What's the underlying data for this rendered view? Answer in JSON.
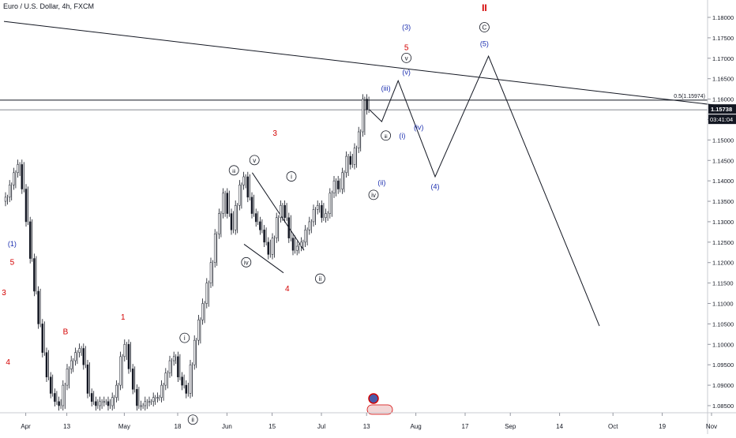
{
  "header": {
    "symbol": "Euro / U.S. Dollar, 4h, FXCM"
  },
  "colors": {
    "red": "#d40000",
    "blue": "#1c2fb0",
    "black": "#131722",
    "grid_text": "#131722",
    "price_badge_bg": "#131722",
    "price_badge_fg": "#ffffff"
  },
  "chart_data": {
    "type": "line",
    "title": "Euro / U.S. Dollar, 4h, FXCM",
    "xlabel": "",
    "ylabel": "",
    "ylim": [
      1.0825,
      1.1825
    ],
    "grid": false,
    "x_ticks": [
      "Apr",
      "13",
      "May",
      "18",
      "Jun",
      "15",
      "Jul",
      "13",
      "Aug",
      "17",
      "Sep",
      "14",
      "Oct",
      "19",
      "Nov"
    ],
    "y_ticks": [
      "1.18000",
      "1.17500",
      "1.17000",
      "1.16500",
      "1.16000",
      "1.15500",
      "1.15000",
      "1.14500",
      "1.14000",
      "1.13500",
      "1.13000",
      "1.12500",
      "1.12000",
      "1.11500",
      "1.11000",
      "1.10500",
      "1.10000",
      "1.09500",
      "1.09000",
      "1.08500"
    ],
    "current_price": "1.15738",
    "countdown": "03:41:04",
    "fib_label": "0.5(1.15974)",
    "price_path": [
      [
        0,
        1.135
      ],
      [
        1,
        1.136
      ],
      [
        2,
        1.139
      ],
      [
        3,
        1.142
      ],
      [
        4,
        1.144
      ],
      [
        5,
        1.138
      ],
      [
        6,
        1.13
      ],
      [
        7,
        1.121
      ],
      [
        8,
        1.113
      ],
      [
        9,
        1.105
      ],
      [
        10,
        1.098
      ],
      [
        11,
        1.092
      ],
      [
        12,
        1.088
      ],
      [
        13,
        1.086
      ],
      [
        14,
        1.085
      ],
      [
        15,
        1.09
      ],
      [
        16,
        1.094
      ],
      [
        17,
        1.096
      ],
      [
        18,
        1.098
      ],
      [
        19,
        1.099
      ],
      [
        20,
        1.095
      ],
      [
        21,
        1.088
      ],
      [
        22,
        1.086
      ],
      [
        23,
        1.085
      ],
      [
        24,
        1.086
      ],
      [
        25,
        1.086
      ],
      [
        26,
        1.085
      ],
      [
        27,
        1.087
      ],
      [
        28,
        1.09
      ],
      [
        29,
        1.097
      ],
      [
        30,
        1.1
      ],
      [
        31,
        1.094
      ],
      [
        32,
        1.089
      ],
      [
        33,
        1.085
      ],
      [
        34,
        1.085
      ],
      [
        35,
        1.086
      ],
      [
        36,
        1.086
      ],
      [
        37,
        1.087
      ],
      [
        38,
        1.087
      ],
      [
        39,
        1.09
      ],
      [
        40,
        1.093
      ],
      [
        41,
        1.096
      ],
      [
        42,
        1.097
      ],
      [
        43,
        1.092
      ],
      [
        44,
        1.09
      ],
      [
        45,
        1.088
      ],
      [
        46,
        1.095
      ],
      [
        47,
        1.101
      ],
      [
        48,
        1.106
      ],
      [
        49,
        1.11
      ],
      [
        50,
        1.115
      ],
      [
        51,
        1.12
      ],
      [
        52,
        1.127
      ],
      [
        53,
        1.132
      ],
      [
        54,
        1.137
      ],
      [
        55,
        1.132
      ],
      [
        56,
        1.128
      ],
      [
        57,
        1.134
      ],
      [
        58,
        1.139
      ],
      [
        59,
        1.141
      ],
      [
        60,
        1.136
      ],
      [
        61,
        1.132
      ],
      [
        62,
        1.13
      ],
      [
        63,
        1.128
      ],
      [
        64,
        1.125
      ],
      [
        65,
        1.122
      ],
      [
        66,
        1.126
      ],
      [
        67,
        1.131
      ],
      [
        68,
        1.134
      ],
      [
        69,
        1.131
      ],
      [
        70,
        1.126
      ],
      [
        71,
        1.123
      ],
      [
        72,
        1.124
      ],
      [
        73,
        1.125
      ],
      [
        74,
        1.128
      ],
      [
        75,
        1.13
      ],
      [
        76,
        1.133
      ],
      [
        77,
        1.134
      ],
      [
        78,
        1.131
      ],
      [
        79,
        1.132
      ],
      [
        80,
        1.137
      ],
      [
        81,
        1.14
      ],
      [
        82,
        1.138
      ],
      [
        83,
        1.142
      ],
      [
        84,
        1.146
      ],
      [
        85,
        1.144
      ],
      [
        86,
        1.148
      ],
      [
        87,
        1.152
      ],
      [
        88,
        1.16
      ],
      [
        89,
        1.1574
      ]
    ],
    "projection_path": [
      [
        89,
        1.1574
      ],
      [
        92,
        1.1545
      ],
      [
        96,
        1.1645
      ],
      [
        105,
        1.141
      ],
      [
        118,
        1.1705
      ],
      [
        145,
        1.1045
      ]
    ],
    "trendlines": [
      {
        "name": "",
        "from": [
          0,
          1.179
        ],
        "to": [
          182,
          1.1575
        ]
      }
    ],
    "wedge_lines": [
      {
        "from": [
          62,
          1.142
        ],
        "to": [
          75,
          1.123
        ]
      },
      {
        "from": [
          60,
          1.1245
        ],
        "to": [
          70,
          1.1175
        ]
      }
    ],
    "horizontal_levels": [
      1.15974,
      1.15738
    ],
    "wave_labels_red": [
      {
        "text": "3",
        "at": [
          0,
          1.112
        ]
      },
      {
        "text": "5",
        "at": [
          2,
          1.1195
        ]
      },
      {
        "text": "4",
        "at": [
          1,
          1.095
        ]
      },
      {
        "text": "B",
        "at": [
          15,
          1.1025
        ]
      },
      {
        "text": "1",
        "at": [
          29,
          1.106
        ]
      },
      {
        "text": "3",
        "at": [
          66,
          1.151
        ]
      },
      {
        "text": "4",
        "at": [
          69,
          1.113
        ]
      },
      {
        "text": "5",
        "at": [
          98,
          1.172
        ]
      },
      {
        "text": "II",
        "at": [
          117,
          1.1815
        ]
      }
    ],
    "wave_labels_blue": [
      {
        "text": "(1)",
        "at": [
          2,
          1.124
        ]
      },
      {
        "text": "(3)",
        "at": [
          98,
          1.177
        ]
      },
      {
        "text": "(5)",
        "at": [
          117,
          1.173
        ]
      },
      {
        "text": "(4)",
        "at": [
          105,
          1.138
        ]
      },
      {
        "text": "(iii)",
        "at": [
          93,
          1.162
        ]
      },
      {
        "text": "(v)",
        "at": [
          98,
          1.166
        ]
      },
      {
        "text": "(iv)",
        "at": [
          101,
          1.1525
        ]
      },
      {
        "text": "(i)",
        "at": [
          97,
          1.1505
        ]
      },
      {
        "text": "(ii)",
        "at": [
          92,
          1.139
        ]
      }
    ],
    "wave_labels_circled": [
      {
        "text": "v",
        "at": [
          61,
          1.1445
        ]
      },
      {
        "text": "iii",
        "at": [
          56,
          1.142
        ]
      },
      {
        "text": "i",
        "at": [
          70,
          1.1405
        ]
      },
      {
        "text": "iv",
        "at": [
          59,
          1.1195
        ]
      },
      {
        "text": "ii",
        "at": [
          77,
          1.1155
        ]
      },
      {
        "text": "iii",
        "at": [
          93,
          1.1505
        ]
      },
      {
        "text": "iv",
        "at": [
          90,
          1.136
        ]
      },
      {
        "text": "v",
        "at": [
          98,
          1.1695
        ]
      },
      {
        "text": "C",
        "at": [
          117,
          1.177
        ]
      },
      {
        "text": "i",
        "at": [
          44,
          1.101
        ]
      },
      {
        "text": "ii",
        "at": [
          46,
          1.081
        ]
      }
    ]
  }
}
